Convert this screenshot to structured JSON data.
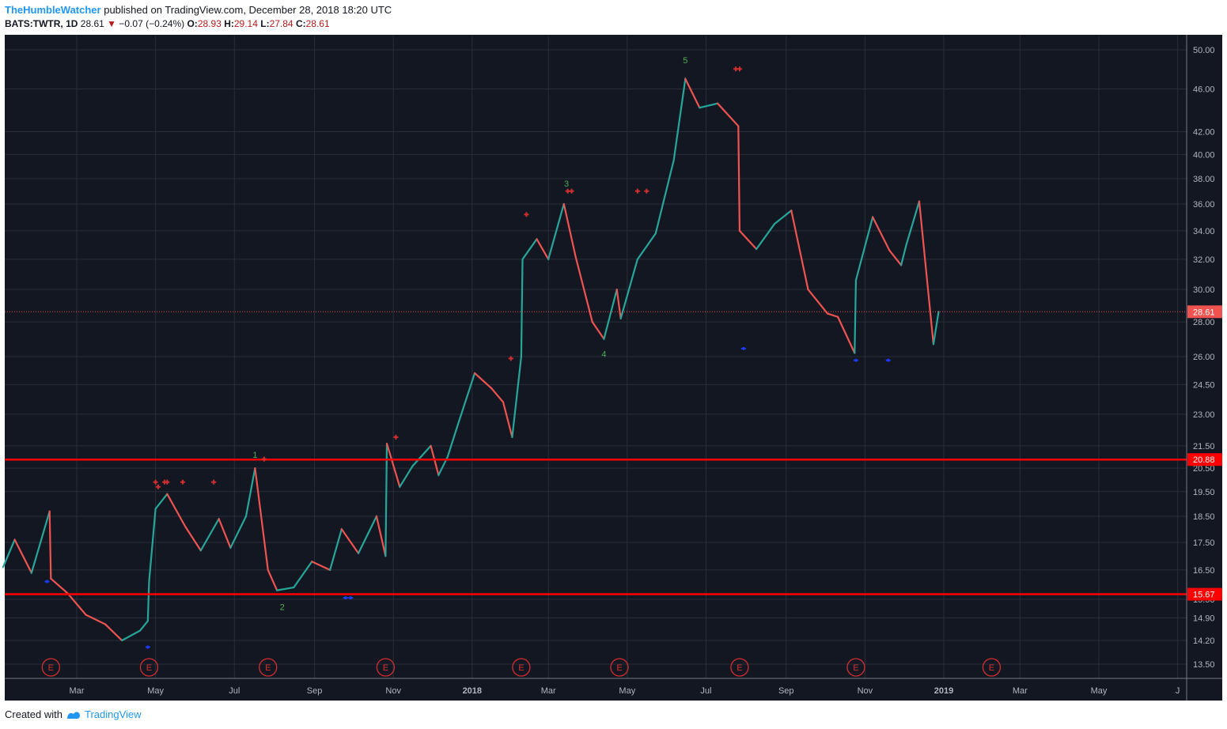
{
  "header": {
    "author": "TheHumbleWatcher",
    "published": "published on TradingView.com, December 28, 2018 18:20 UTC",
    "symbol": "BATS:TWTR, 1D",
    "last": "28.61",
    "change": "−0.07 (−0.24%)",
    "o_label": "O:",
    "o_value": "28.93",
    "h_label": "H:",
    "h_value": "29.14",
    "l_label": "L:",
    "l_value": "27.84",
    "c_label": "C:",
    "c_value": "28.61"
  },
  "footer": {
    "created_with": "Created with",
    "brand": "TradingView"
  },
  "colors": {
    "background": "#131722",
    "up": "#26a69a",
    "down": "#ef5350",
    "hline": "#ff0000",
    "grid": "#2a2e39"
  },
  "chart_data": {
    "type": "line",
    "y_scale": "log",
    "ylim": [
      13.2,
      51.5
    ],
    "y_ticks": [
      "50.00",
      "46.00",
      "42.00",
      "40.00",
      "38.00",
      "36.00",
      "34.00",
      "32.00",
      "30.00",
      "28.00",
      "26.00",
      "24.50",
      "23.00",
      "21.50",
      "20.50",
      "19.50",
      "18.50",
      "17.50",
      "16.50",
      "15.50",
      "14.90",
      "14.20",
      "13.50"
    ],
    "x_ticks": [
      "Mar",
      "May",
      "Jul",
      "Sep",
      "Nov",
      "2018",
      "Mar",
      "May",
      "Jul",
      "Sep",
      "Nov",
      "2019",
      "Mar",
      "May",
      "J"
    ],
    "series": [
      {
        "x": [
          "2017-01-03",
          "2017-01-12",
          "2017-01-25",
          "2017-02-08",
          "2017-02-09",
          "2017-02-22",
          "2017-03-08",
          "2017-03-23",
          "2017-04-05",
          "2017-04-19",
          "2017-04-25",
          "2017-04-26",
          "2017-05-01",
          "2017-05-10",
          "2017-05-24",
          "2017-06-05",
          "2017-06-19",
          "2017-06-28",
          "2017-07-10",
          "2017-07-17",
          "2017-07-27",
          "2017-08-03",
          "2017-08-16",
          "2017-08-30",
          "2017-09-13",
          "2017-09-22",
          "2017-10-05",
          "2017-10-19",
          "2017-10-26",
          "2017-10-27",
          "2017-11-06",
          "2017-11-16",
          "2017-11-30",
          "2017-12-06",
          "2017-12-13",
          "2017-12-21",
          "2018-01-03",
          "2018-01-16",
          "2018-01-25",
          "2018-02-01",
          "2018-02-08",
          "2018-02-09",
          "2018-02-20",
          "2018-03-01",
          "2018-03-13",
          "2018-03-22",
          "2018-04-04",
          "2018-04-13",
          "2018-04-23",
          "2018-04-26",
          "2018-05-09",
          "2018-05-23",
          "2018-06-06",
          "2018-06-15",
          "2018-06-26",
          "2018-07-10",
          "2018-07-26",
          "2018-07-27",
          "2018-08-09",
          "2018-08-23",
          "2018-09-05",
          "2018-09-18",
          "2018-10-03",
          "2018-10-11",
          "2018-10-24",
          "2018-10-25",
          "2018-11-07",
          "2018-11-20",
          "2018-11-29",
          "2018-12-03",
          "2018-12-13",
          "2018-12-24",
          "2018-12-28"
        ],
        "values": [
          16.6,
          17.6,
          16.4,
          18.7,
          16.2,
          15.7,
          15.0,
          14.7,
          14.2,
          14.5,
          14.8,
          16.1,
          18.8,
          19.4,
          18.1,
          17.2,
          18.4,
          17.3,
          18.5,
          20.5,
          16.5,
          15.8,
          15.9,
          16.8,
          16.5,
          18.0,
          17.1,
          18.5,
          17.0,
          21.6,
          19.7,
          20.6,
          21.5,
          20.2,
          21.0,
          22.5,
          25.1,
          24.3,
          23.6,
          21.9,
          26.0,
          32.0,
          33.4,
          32.0,
          36.0,
          32.2,
          28.0,
          27.0,
          30.0,
          28.2,
          32.0,
          33.8,
          39.5,
          47.0,
          44.2,
          44.6,
          42.5,
          34.0,
          32.7,
          34.5,
          35.5,
          30.0,
          28.5,
          28.3,
          26.2,
          30.6,
          35.0,
          32.6,
          31.6,
          33.0,
          36.2,
          26.7,
          28.61
        ]
      }
    ],
    "horizontal_lines": [
      20.88,
      15.67
    ],
    "price_labels": [
      "28.61",
      "20.88",
      "15.67"
    ],
    "last_price": 28.61,
    "wave_labels": [
      {
        "text": "1",
        "date": "2017-07-17",
        "price": 21.1
      },
      {
        "text": "2",
        "date": "2017-08-07",
        "price": 15.25
      },
      {
        "text": "3",
        "date": "2018-03-15",
        "price": 37.6
      },
      {
        "text": "4",
        "date": "2018-04-13",
        "price": 26.15
      },
      {
        "text": "5",
        "date": "2018-06-15",
        "price": 48.9
      }
    ],
    "earnings_marker": "E",
    "earnings_dates": [
      "2017-02-09",
      "2017-04-26",
      "2017-07-27",
      "2017-10-26",
      "2018-02-08",
      "2018-04-25",
      "2018-07-27",
      "2018-10-25",
      "2019-02-07"
    ],
    "red_crosses": [
      [
        "2017-05-01",
        19.9
      ],
      [
        "2017-05-03",
        19.7
      ],
      [
        "2017-05-08",
        19.9
      ],
      [
        "2017-05-10",
        19.9
      ],
      [
        "2017-05-22",
        19.9
      ],
      [
        "2017-06-15",
        19.9
      ],
      [
        "2017-07-24",
        20.9
      ],
      [
        "2017-11-03",
        21.9
      ],
      [
        "2018-01-31",
        25.9
      ],
      [
        "2018-02-12",
        35.2
      ],
      [
        "2018-03-16",
        37.0
      ],
      [
        "2018-03-19",
        37.0
      ],
      [
        "2018-05-09",
        37.0
      ],
      [
        "2018-05-16",
        37.0
      ],
      [
        "2018-07-24",
        48.0
      ],
      [
        "2018-07-27",
        48.0
      ]
    ],
    "blue_marks": [
      [
        "2017-02-06",
        16.1
      ],
      [
        "2017-04-25",
        14.0
      ],
      [
        "2017-09-25",
        15.55
      ],
      [
        "2017-09-29",
        15.55
      ],
      [
        "2018-07-30",
        26.45
      ],
      [
        "2018-10-25",
        25.8
      ],
      [
        "2018-11-19",
        25.8
      ]
    ]
  }
}
